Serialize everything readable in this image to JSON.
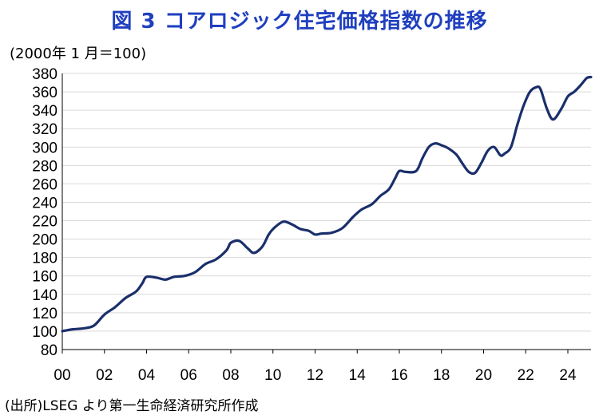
{
  "title": "図 3  コアロジック住宅価格指数の推移",
  "unit_label": "(2000年 1 月＝100)",
  "source": "(出所)LSEG より第一生命経済研究所作成",
  "colors": {
    "title": "#1f3fbf",
    "line": "#1a2f6b",
    "grid": "#d9d9d9",
    "axis": "#000000"
  },
  "chart_data": {
    "type": "line",
    "title": "図 3  コアロジック住宅価格指数の推移",
    "ylabel": "(2000年 1 月＝100)",
    "xlabel": "",
    "ylim": [
      80,
      380
    ],
    "yticks": [
      80,
      100,
      120,
      140,
      160,
      180,
      200,
      220,
      240,
      260,
      280,
      300,
      320,
      340,
      360,
      380
    ],
    "xlim": [
      2000,
      2025.1
    ],
    "xticks": [
      "00",
      "02",
      "04",
      "06",
      "08",
      "10",
      "12",
      "14",
      "16",
      "18",
      "20",
      "22",
      "24"
    ],
    "grid": true,
    "legend": "none",
    "series": [
      {
        "x": [
          2000.0,
          2000.5,
          2001.0,
          2001.5,
          2002.0,
          2002.5,
          2003.0,
          2003.5,
          2003.8,
          2004.0,
          2004.5,
          2004.9,
          2005.3,
          2005.8,
          2006.3,
          2006.8,
          2007.3,
          2007.8,
          2008.0,
          2008.4,
          2008.8,
          2009.1,
          2009.5,
          2009.8,
          2010.1,
          2010.5,
          2010.9,
          2011.3,
          2011.7,
          2012.0,
          2012.3,
          2012.8,
          2013.3,
          2013.8,
          2014.2,
          2014.7,
          2015.1,
          2015.5,
          2015.8,
          2016.0,
          2016.3,
          2016.8,
          2017.1,
          2017.4,
          2017.7,
          2018.0,
          2018.3,
          2018.7,
          2019.0,
          2019.3,
          2019.6,
          2019.9,
          2020.2,
          2020.5,
          2020.8,
          2021.0,
          2021.3,
          2021.6,
          2021.9,
          2022.2,
          2022.5,
          2022.7,
          2023.0,
          2023.3,
          2023.7,
          2024.0,
          2024.3,
          2024.6,
          2024.9,
          2025.1
        ],
        "values": [
          100,
          102,
          103,
          106,
          118,
          126,
          136,
          143,
          152,
          159,
          158,
          156,
          159,
          160,
          164,
          173,
          178,
          188,
          196,
          198,
          190,
          185,
          192,
          205,
          213,
          219,
          216,
          211,
          209,
          205,
          206,
          207,
          212,
          224,
          232,
          238,
          247,
          254,
          266,
          274,
          273,
          274,
          288,
          300,
          304,
          302,
          299,
          292,
          282,
          273,
          272,
          283,
          296,
          300,
          291,
          293,
          300,
          324,
          345,
          360,
          365,
          363,
          342,
          330,
          342,
          355,
          360,
          367,
          375,
          376
        ]
      }
    ]
  }
}
